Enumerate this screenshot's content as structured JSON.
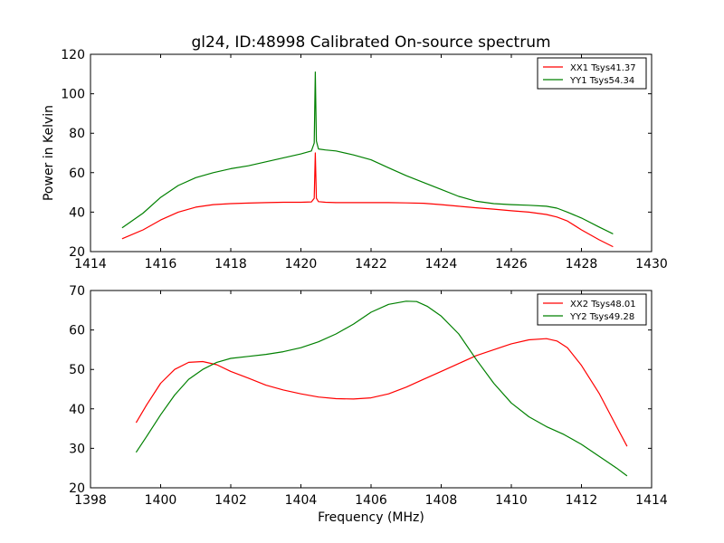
{
  "figure": {
    "title": "gl24, ID:48998 Calibrated On-source spectrum"
  },
  "chart_data": [
    {
      "type": "line",
      "xlabel": "",
      "ylabel": "Power in Kelvin",
      "xlim": [
        1414,
        1430
      ],
      "ylim": [
        20,
        120
      ],
      "xticks": [
        1414,
        1416,
        1418,
        1420,
        1422,
        1424,
        1426,
        1428,
        1430
      ],
      "yticks": [
        20,
        40,
        60,
        80,
        100,
        120
      ],
      "legend_position": "top-right",
      "series": [
        {
          "name": "XX1 Tsys41.37",
          "color": "#ff0000",
          "x": [
            1414.9,
            1415.5,
            1416.0,
            1416.5,
            1417.0,
            1417.5,
            1418.0,
            1418.5,
            1419.0,
            1419.5,
            1420.0,
            1420.3,
            1420.38,
            1420.41,
            1420.44,
            1420.5,
            1420.7,
            1421.0,
            1421.5,
            1422.0,
            1422.5,
            1423.0,
            1423.5,
            1424.0,
            1424.5,
            1425.0,
            1425.5,
            1426.0,
            1426.5,
            1427.0,
            1427.3,
            1427.6,
            1428.0,
            1428.5,
            1428.9
          ],
          "y": [
            26.5,
            31,
            36,
            40,
            42.5,
            43.8,
            44.3,
            44.6,
            44.8,
            45,
            45,
            45.2,
            47,
            70,
            47,
            45.3,
            45,
            44.8,
            44.8,
            44.8,
            44.8,
            44.7,
            44.5,
            43.8,
            43,
            42.2,
            41.5,
            40.7,
            40,
            38.8,
            37.5,
            35.5,
            31,
            26,
            22.5
          ]
        },
        {
          "name": "YY1 Tsys54.34",
          "color": "#008000",
          "x": [
            1414.9,
            1415.5,
            1416.0,
            1416.5,
            1417.0,
            1417.5,
            1418.0,
            1418.5,
            1419.0,
            1419.5,
            1420.0,
            1420.3,
            1420.38,
            1420.41,
            1420.44,
            1420.5,
            1420.7,
            1421.0,
            1421.5,
            1422.0,
            1422.5,
            1423.0,
            1423.5,
            1424.0,
            1424.5,
            1425.0,
            1425.5,
            1426.0,
            1426.5,
            1427.0,
            1427.3,
            1427.6,
            1428.0,
            1428.5,
            1428.9
          ],
          "y": [
            32,
            39.5,
            47.5,
            53.5,
            57.5,
            60,
            62,
            63.5,
            65.5,
            67.5,
            69.5,
            71,
            75,
            111,
            76,
            72,
            71.5,
            71,
            69,
            66.5,
            62.5,
            58.5,
            55,
            51.5,
            48,
            45.5,
            44.3,
            43.8,
            43.5,
            43,
            42,
            40,
            37,
            32.5,
            29
          ]
        }
      ]
    },
    {
      "type": "line",
      "xlabel": "Frequency (MHz)",
      "ylabel": "",
      "xlim": [
        1398,
        1414
      ],
      "ylim": [
        20,
        70
      ],
      "xticks": [
        1398,
        1400,
        1402,
        1404,
        1406,
        1408,
        1410,
        1412,
        1414
      ],
      "yticks": [
        20,
        30,
        40,
        50,
        60,
        70
      ],
      "legend_position": "top-right",
      "series": [
        {
          "name": "XX2 Tsys48.01",
          "color": "#ff0000",
          "x": [
            1399.3,
            1399.6,
            1400.0,
            1400.4,
            1400.8,
            1401.2,
            1401.6,
            1402.0,
            1402.5,
            1403.0,
            1403.5,
            1404.0,
            1404.5,
            1405.0,
            1405.5,
            1406.0,
            1406.5,
            1407.0,
            1407.5,
            1408.0,
            1408.5,
            1409.0,
            1409.5,
            1410.0,
            1410.5,
            1411.0,
            1411.3,
            1411.6,
            1412.0,
            1412.5,
            1413.0,
            1413.3
          ],
          "y": [
            36.5,
            41,
            46.5,
            50,
            51.8,
            52,
            51.2,
            49.5,
            47.8,
            46,
            44.8,
            43.8,
            43,
            42.6,
            42.5,
            42.8,
            43.8,
            45.5,
            47.5,
            49.5,
            51.5,
            53.5,
            55,
            56.5,
            57.5,
            57.8,
            57.2,
            55.5,
            51,
            44,
            35.5,
            30.5
          ]
        },
        {
          "name": "YY2 Tsys49.28",
          "color": "#008000",
          "x": [
            1399.3,
            1399.6,
            1400.0,
            1400.4,
            1400.8,
            1401.2,
            1401.6,
            1402.0,
            1402.5,
            1403.0,
            1403.5,
            1404.0,
            1404.5,
            1405.0,
            1405.5,
            1406.0,
            1406.5,
            1407.0,
            1407.3,
            1407.6,
            1408.0,
            1408.5,
            1409.0,
            1409.5,
            1410.0,
            1410.5,
            1411.0,
            1411.5,
            1412.0,
            1412.5,
            1413.0,
            1413.3
          ],
          "y": [
            29,
            33,
            38.5,
            43.5,
            47.5,
            50,
            51.8,
            52.8,
            53.3,
            53.8,
            54.5,
            55.5,
            57,
            59,
            61.5,
            64.5,
            66.5,
            67.3,
            67.2,
            66,
            63.5,
            59,
            52.5,
            46.5,
            41.5,
            38,
            35.5,
            33.5,
            31,
            28,
            25,
            23
          ]
        }
      ]
    }
  ]
}
